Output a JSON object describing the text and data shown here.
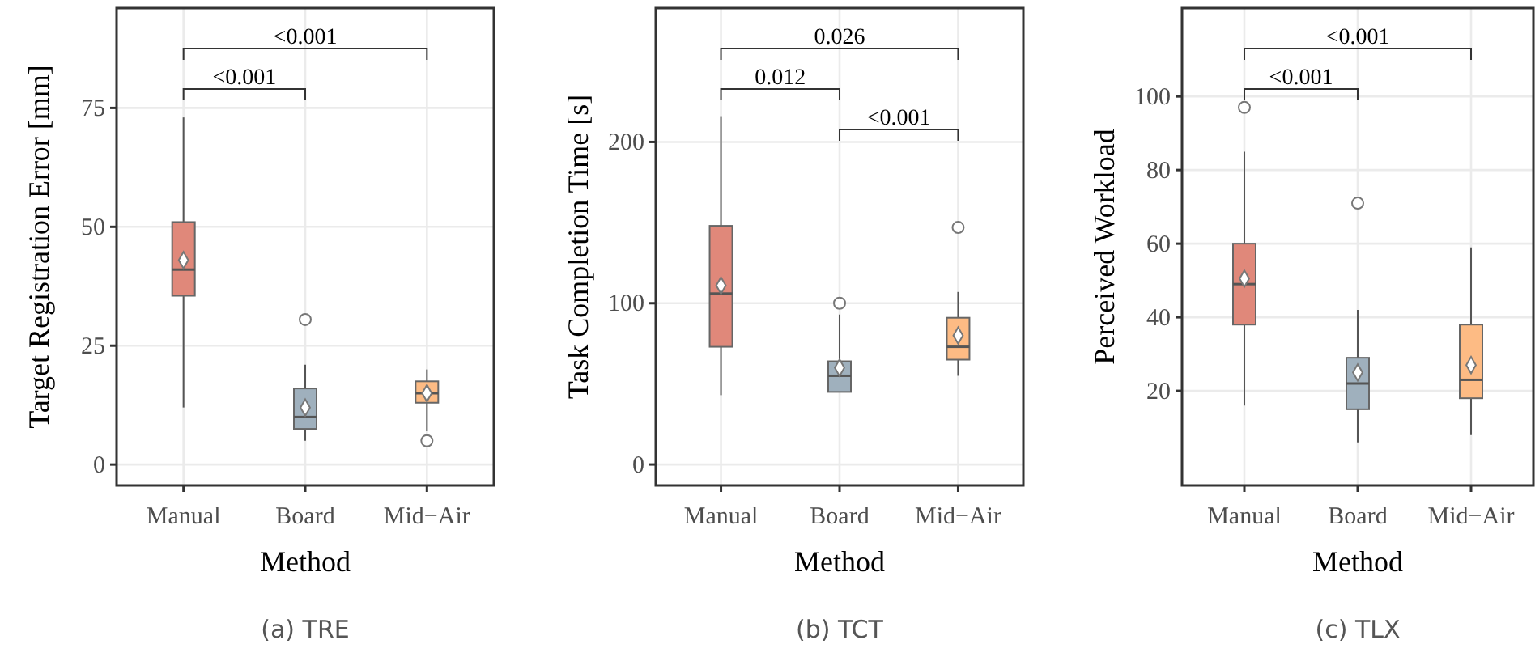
{
  "chart_data": [
    {
      "type": "box",
      "title": "(a) TRE",
      "xlabel": "Method",
      "ylabel": "Target Registration Error [mm]",
      "categories": [
        "Manual",
        "Board",
        "Mid−Air"
      ],
      "colors": [
        "#e0887a",
        "#9fb0bd",
        "#fdbb84"
      ],
      "ylim": [
        -4.4,
        96
      ],
      "yticks": [
        0,
        25,
        50,
        75
      ],
      "grid": true,
      "annotations": [
        "<0.001",
        "<0.001"
      ],
      "boxes": [
        {
          "low": 12,
          "q1": 35.5,
          "median": 41,
          "q3": 51,
          "high": 73,
          "mean": 43
        },
        {
          "low": 5,
          "q1": 7.5,
          "median": 10,
          "q3": 16,
          "high": 21,
          "mean": 12,
          "outliers": [
            30.5
          ]
        },
        {
          "low": 7,
          "q1": 13,
          "median": 15,
          "q3": 17.5,
          "high": 20,
          "mean": 15,
          "outliers": [
            5
          ]
        }
      ]
    },
    {
      "type": "box",
      "title": "(b) TCT",
      "xlabel": "Method",
      "ylabel": "Task Completion Time [s]",
      "categories": [
        "Manual",
        "Board",
        "Mid−Air"
      ],
      "colors": [
        "#e0887a",
        "#9fb0bd",
        "#fdbb84"
      ],
      "ylim": [
        -13,
        283
      ],
      "yticks": [
        0,
        100,
        200
      ],
      "grid": true,
      "annotations": [
        "0.026",
        "0.012",
        "<0.001"
      ],
      "boxes": [
        {
          "low": 43,
          "q1": 73,
          "median": 106,
          "q3": 148,
          "high": 216,
          "mean": 111
        },
        {
          "low": 45,
          "q1": 45,
          "median": 55,
          "q3": 64,
          "high": 93,
          "mean": 60,
          "outliers": [
            100
          ]
        },
        {
          "low": 55,
          "q1": 65,
          "median": 73,
          "q3": 91,
          "high": 107,
          "mean": 80,
          "outliers": [
            147
          ]
        }
      ]
    },
    {
      "type": "box",
      "title": "(c) TLX",
      "xlabel": "Method",
      "ylabel": "Perceived Workload",
      "categories": [
        "Manual",
        "Board",
        "Mid−Air"
      ],
      "colors": [
        "#e0887a",
        "#9fb0bd",
        "#fdbb84"
      ],
      "ylim": [
        -5.7,
        124
      ],
      "yticks": [
        20,
        40,
        60,
        80,
        100
      ],
      "grid": true,
      "annotations": [
        "<0.001",
        "<0.001"
      ],
      "boxes": [
        {
          "low": 16,
          "q1": 38,
          "median": 49,
          "q3": 60,
          "high": 85,
          "mean": 50.5,
          "outliers": [
            97
          ]
        },
        {
          "low": 6,
          "q1": 15,
          "median": 22,
          "q3": 29,
          "high": 42,
          "mean": 25,
          "outliers": [
            71
          ]
        },
        {
          "low": 8,
          "q1": 18,
          "median": 23,
          "q3": 38,
          "high": 59,
          "mean": 27
        }
      ]
    }
  ]
}
